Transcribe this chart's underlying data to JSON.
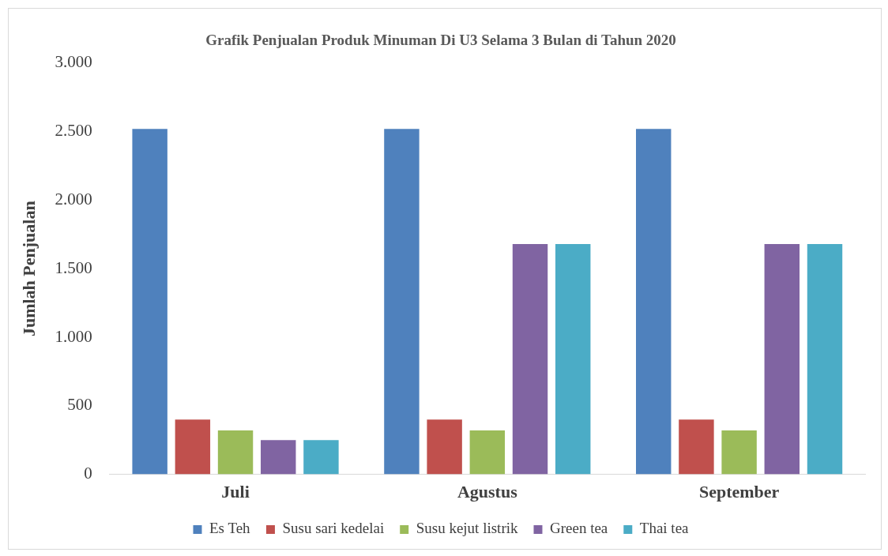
{
  "chart_data": {
    "type": "bar",
    "title": "Grafik Penjualan Produk Minuman Di U3 Selama 3 Bulan di Tahun 2020",
    "ylabel": "Jumlah Penjualan",
    "categories": [
      "Juli",
      "Agustus",
      "September"
    ],
    "series": [
      {
        "name": "Es Teh",
        "color": "#4f81bd",
        "values": [
          2520,
          2520,
          2520
        ]
      },
      {
        "name": "Susu sari kedelai",
        "color": "#c0504d",
        "values": [
          400,
          400,
          400
        ]
      },
      {
        "name": "Susu kejut listrik",
        "color": "#9bbb59",
        "values": [
          320,
          320,
          320
        ]
      },
      {
        "name": "Green tea",
        "color": "#8064a2",
        "values": [
          250,
          1680,
          1680
        ]
      },
      {
        "name": "Thai tea",
        "color": "#4bacc6",
        "values": [
          250,
          1680,
          1680
        ]
      }
    ],
    "ylim": [
      0,
      3000
    ],
    "yticks": [
      0,
      500,
      {
        "value": 1000,
        "label": "1.000"
      },
      {
        "value": 1500,
        "label": "1.500"
      },
      {
        "value": 2000,
        "label": "2.000"
      },
      {
        "value": 2500,
        "label": "2.500"
      },
      {
        "value": 3000,
        "label": "3.000"
      }
    ],
    "grid": false,
    "legend": "bottom"
  }
}
